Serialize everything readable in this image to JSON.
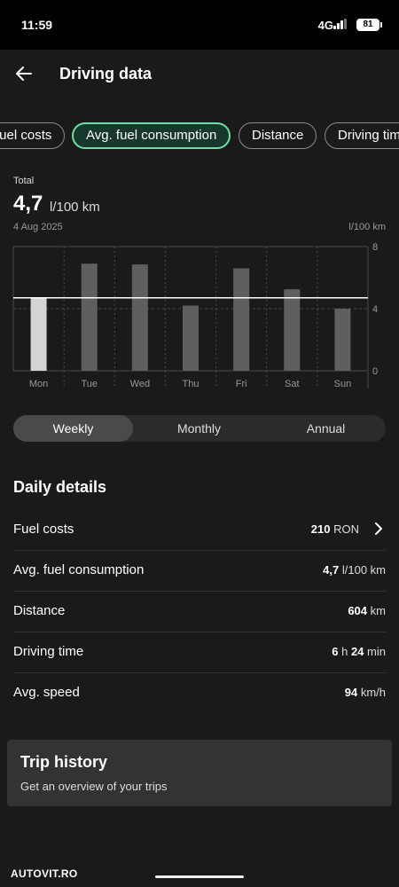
{
  "status": {
    "time": "11:59",
    "network": "4G",
    "battery": "81"
  },
  "header": {
    "title": "Driving data",
    "back_icon": "arrow-left-icon"
  },
  "chips": [
    {
      "label": "Fuel costs",
      "active": false
    },
    {
      "label": "Avg. fuel consumption",
      "active": true
    },
    {
      "label": "Distance",
      "active": false
    },
    {
      "label": "Driving time",
      "active": false
    }
  ],
  "summary": {
    "total_label": "Total",
    "value": "4,7",
    "unit": "l/100 km",
    "date": "4 Aug 2025",
    "y_unit": "l/100 km"
  },
  "chart_data": {
    "type": "bar",
    "categories": [
      "Mon",
      "Tue",
      "Wed",
      "Thu",
      "Fri",
      "Sat",
      "Sun"
    ],
    "values": [
      4.7,
      6.9,
      6.85,
      4.2,
      6.6,
      5.25,
      4.0
    ],
    "selected_index": 0,
    "reference_line": 4.7,
    "ylim": [
      0,
      8
    ],
    "yticks": [
      0,
      4,
      8
    ],
    "grid": true,
    "colors": {
      "selected": "#d4d4d4",
      "bar": "#5f5f5f",
      "grid": "#4a4a4a",
      "reference": "#ffffff"
    }
  },
  "period": {
    "options": [
      "Weekly",
      "Monthly",
      "Annual"
    ],
    "active": 0
  },
  "details": {
    "title": "Daily details",
    "rows": [
      {
        "label": "Fuel costs",
        "v1": "210",
        "u1": "RON",
        "has_chevron": true
      },
      {
        "label": "Avg. fuel consumption",
        "v1": "4,7",
        "u1": "l/100 km"
      },
      {
        "label": "Distance",
        "v1": "604",
        "u1": "km"
      },
      {
        "label": "Driving time",
        "v1": "6",
        "u1": "h",
        "v2": "24",
        "u2": "min"
      },
      {
        "label": "Avg. speed",
        "v1": "94",
        "u1": "km/h"
      }
    ]
  },
  "trip": {
    "title": "Trip history",
    "subtitle": "Get an overview of your trips"
  },
  "watermark": "AUTOVIT.RO",
  "colors": {
    "accent": "#6fdfa8",
    "background": "#1a1a1a",
    "card": "#333333"
  }
}
